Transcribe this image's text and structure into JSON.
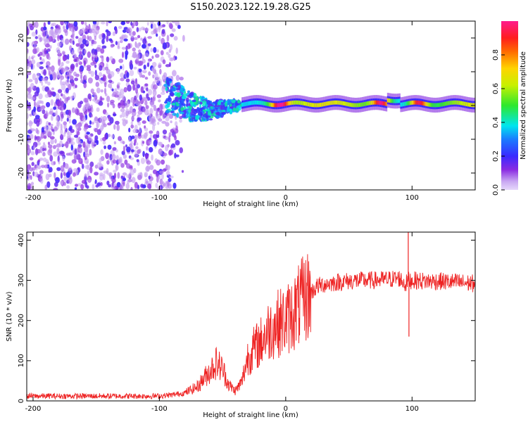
{
  "title": "S150.2023.122.19.28.G25",
  "colors": {
    "signal_line": "#ee2222",
    "axis": "#000000",
    "background": "#ffffff"
  },
  "chart_data": [
    {
      "type": "heatmap",
      "xlabel": "Height of straight line (km)",
      "ylabel": "Frequency (Hz)",
      "xlim": [
        -205,
        150
      ],
      "ylim": [
        -25,
        25
      ],
      "x_ticks": [
        -200,
        -100,
        0,
        100
      ],
      "y_ticks": [
        -20,
        -10,
        0,
        10,
        20
      ],
      "colorbar": {
        "label": "Normalized spectral amplitude",
        "range": [
          0,
          1
        ],
        "ticks": [
          0.0,
          0.2,
          0.4,
          0.6,
          0.8
        ],
        "colormap": "hsv-like: lavender - purple - blue - cyan - green - yellow - red - magenta"
      },
      "regions": [
        {
          "description": "broadband noise",
          "x_range": [
            -205,
            -80
          ],
          "y_range": [
            -25,
            25
          ],
          "amplitude": [
            0.05,
            0.2
          ]
        },
        {
          "description": "ridge converging to 0 Hz",
          "x_range": [
            -95,
            -35
          ],
          "freq_range": [
            -8,
            8
          ],
          "amplitude": [
            0.15,
            0.45
          ]
        },
        {
          "description": "narrow band near 0 Hz",
          "x_range": [
            -35,
            150
          ],
          "freq_center": 0.5,
          "amplitude": [
            0.4,
            1.0
          ],
          "peaks_at_km": [
            -5,
            75,
            105
          ]
        }
      ]
    },
    {
      "type": "line",
      "xlabel": "Height of straight line (km)",
      "ylabel": "SNR (10 * v/v)",
      "xlim": [
        -205,
        150
      ],
      "ylim": [
        0,
        420
      ],
      "x_ticks": [
        -200,
        -100,
        0,
        100
      ],
      "y_ticks": [
        0,
        100,
        200,
        300,
        400
      ],
      "series": [
        {
          "x": [
            -205,
            -180,
            -150,
            -120,
            -100,
            -90,
            -80,
            -70,
            -65,
            -60,
            -55,
            -50,
            -45,
            -40,
            -35,
            -30,
            -25,
            -20,
            -15,
            -10,
            -5,
            0,
            5,
            10,
            15,
            20,
            25,
            30,
            40,
            50,
            60,
            70,
            80,
            90,
            95,
            97,
            100,
            110,
            120,
            130,
            140,
            150
          ],
          "y": [
            12,
            12,
            12,
            12,
            12,
            15,
            20,
            35,
            55,
            75,
            95,
            80,
            40,
            25,
            45,
            110,
            130,
            145,
            170,
            185,
            195,
            200,
            215,
            235,
            255,
            270,
            285,
            290,
            295,
            298,
            300,
            300,
            302,
            305,
            290,
            300,
            300,
            298,
            298,
            296,
            294,
            292
          ]
        }
      ],
      "annotations": [
        {
          "x": 97,
          "y_peak": 420,
          "note": "spike"
        },
        {
          "x": 97,
          "y_trough": 160,
          "note": "spike"
        }
      ]
    }
  ]
}
